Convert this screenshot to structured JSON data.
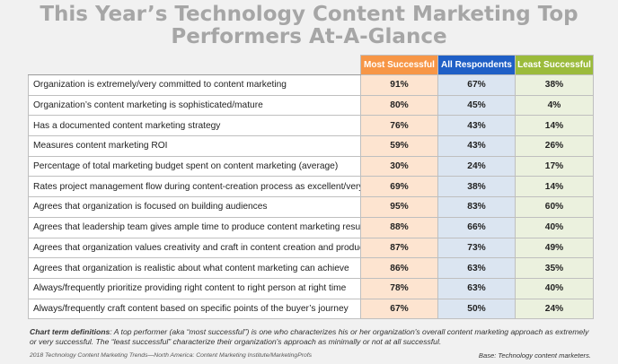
{
  "title_line1": "This Year’s Technology Content Marketing Top",
  "title_line2": "Performers At-A-Glance",
  "colors": {
    "most_header": "#f79646",
    "all_header": "#1f5fc6",
    "least_header": "#9bbb3b",
    "most_cell": "#fde4d0",
    "all_cell": "#dbe5f1",
    "least_cell": "#ebf1de",
    "title": "#a6a6a6"
  },
  "chart_data": {
    "type": "table",
    "columns": [
      "Most Successful",
      "All Respondents",
      "Least Successful"
    ],
    "rows": [
      {
        "label": "Organization is extremely/very committed to content marketing",
        "values": [
          "91%",
          "67%",
          "38%"
        ]
      },
      {
        "label": "Organization’s content marketing is sophisticated/mature",
        "values": [
          "80%",
          "45%",
          "4%"
        ]
      },
      {
        "label": "Has a documented content marketing strategy",
        "values": [
          "76%",
          "43%",
          "14%"
        ]
      },
      {
        "label": "Measures content marketing ROI",
        "values": [
          "59%",
          "43%",
          "26%"
        ]
      },
      {
        "label": "Percentage of total marketing budget spent on content marketing (average)",
        "values": [
          "30%",
          "24%",
          "17%"
        ]
      },
      {
        "label": "Rates project management flow during content-creation process as excellent/very good",
        "values": [
          "69%",
          "38%",
          "14%"
        ]
      },
      {
        "label": "Agrees that organization is focused on building audiences",
        "values": [
          "95%",
          "83%",
          "60%"
        ]
      },
      {
        "label": "Agrees that leadership team gives ample time to produce content marketing results",
        "values": [
          "88%",
          "66%",
          "40%"
        ]
      },
      {
        "label": "Agrees that organization values creativity and craft in content creation and production",
        "values": [
          "87%",
          "73%",
          "49%"
        ]
      },
      {
        "label": "Agrees that organization is realistic about what content marketing can achieve",
        "values": [
          "86%",
          "63%",
          "35%"
        ]
      },
      {
        "label": "Always/frequently prioritize providing right content to right person at right time",
        "values": [
          "78%",
          "63%",
          "40%"
        ]
      },
      {
        "label": "Always/frequently craft content based on specific points of the buyer’s journey",
        "values": [
          "67%",
          "50%",
          "24%"
        ]
      }
    ]
  },
  "footnote": {
    "term": "Chart term definitions",
    "text": ": A top performer (aka “most successful”) is one who characterizes his or her organization's overall content marketing approach as extremely or very successful. The “least successful” characterize their organization's approach as minimally or not at all successful."
  },
  "source": "2018 Technology Content Marketing Trends—North America: Content Marketing Institute/MarketingProfs",
  "base": "Base: Technology content marketers."
}
